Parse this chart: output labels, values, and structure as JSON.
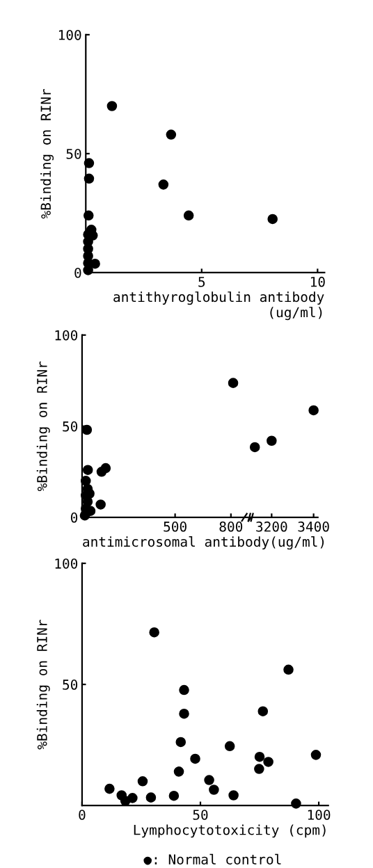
{
  "chart_data": [
    {
      "type": "scatter",
      "xlabel": "antithyroglobulin antibody\n(ug/ml)",
      "ylabel": "%Binding on RINr",
      "xlim": [
        0,
        10.3
      ],
      "ylim": [
        0,
        100
      ],
      "xticks": [
        5,
        10
      ],
      "yticks": [
        0,
        50,
        100
      ],
      "marker": "circle",
      "grid": false,
      "series": [
        {
          "color": "#000000",
          "x": [
            1.13,
            3.68,
            3.35,
            4.44,
            8.06,
            0.14,
            0.14,
            0.12,
            0.24,
            0.3,
            0.4,
            0.1,
            0.1,
            0.1,
            0.1,
            0.1,
            0.1
          ],
          "values": [
            70,
            58,
            37,
            24,
            22.5,
            46,
            39.5,
            24,
            18,
            15.6,
            3.7,
            16,
            13,
            10,
            7,
            4,
            1
          ]
        }
      ]
    },
    {
      "type": "scatter",
      "xlabel": "antimicrosomal antibody(ug/ml)",
      "ylabel": "%Binding on RINr",
      "xlim": [
        0,
        890
      ],
      "ylim": [
        0,
        100
      ],
      "xticks": [
        500,
        800
      ],
      "yticks": [
        0,
        50,
        100
      ],
      "marker": "circle",
      "grid": false,
      "series": [
        {
          "color": "#000000",
          "x": [
            812,
            26,
            31,
            100,
            105,
            127,
            20,
            30,
            40,
            20,
            30,
            20,
            45,
            15
          ],
          "values": [
            73.7,
            48,
            26,
            7,
            25,
            27,
            20,
            15.6,
            13,
            12,
            8.6,
            4.8,
            3.5,
            1
          ]
        }
      ]
    },
    {
      "type": "scatter",
      "xlim": [
        3100,
        3420
      ],
      "ylim": [
        0,
        100
      ],
      "xticks": [
        3200,
        3400
      ],
      "tick_labels": "x",
      "marker": "circle",
      "grid": false,
      "series": [
        {
          "color": "#000000",
          "x": [
            3120,
            3200,
            3400
          ],
          "values": [
            38.5,
            42,
            58.7
          ]
        }
      ]
    },
    {
      "type": "scatter",
      "xlabel": "Lymphocytotoxicity (cpm)",
      "ylabel": "%Binding on RINr",
      "xlim": [
        0,
        104
      ],
      "ylim": [
        0,
        100
      ],
      "xticks": [
        0,
        50,
        100
      ],
      "yticks": [
        50,
        100
      ],
      "marker": "circle",
      "grid": false,
      "annotations": [
        "●: Normal control"
      ],
      "series": [
        {
          "color": "#000000",
          "x": [
            11.6,
            16.7,
            18.3,
            21.3,
            25.6,
            29.1,
            30.5,
            38.8,
            40.9,
            41.7,
            43.1,
            43.1,
            47.8,
            53.7,
            55.7,
            64,
            62.4,
            74.8,
            75,
            76.4,
            78.7,
            87.2,
            90.4,
            98.8
          ],
          "values": [
            6.9,
            4.2,
            1.9,
            3.1,
            10,
            3.3,
            71.5,
            4.0,
            14,
            26.2,
            47.7,
            37.9,
            19.3,
            10.5,
            6.5,
            4.2,
            24.5,
            15.1,
            20.1,
            38.9,
            18,
            56.1,
            0.8,
            20.9
          ]
        }
      ]
    }
  ]
}
